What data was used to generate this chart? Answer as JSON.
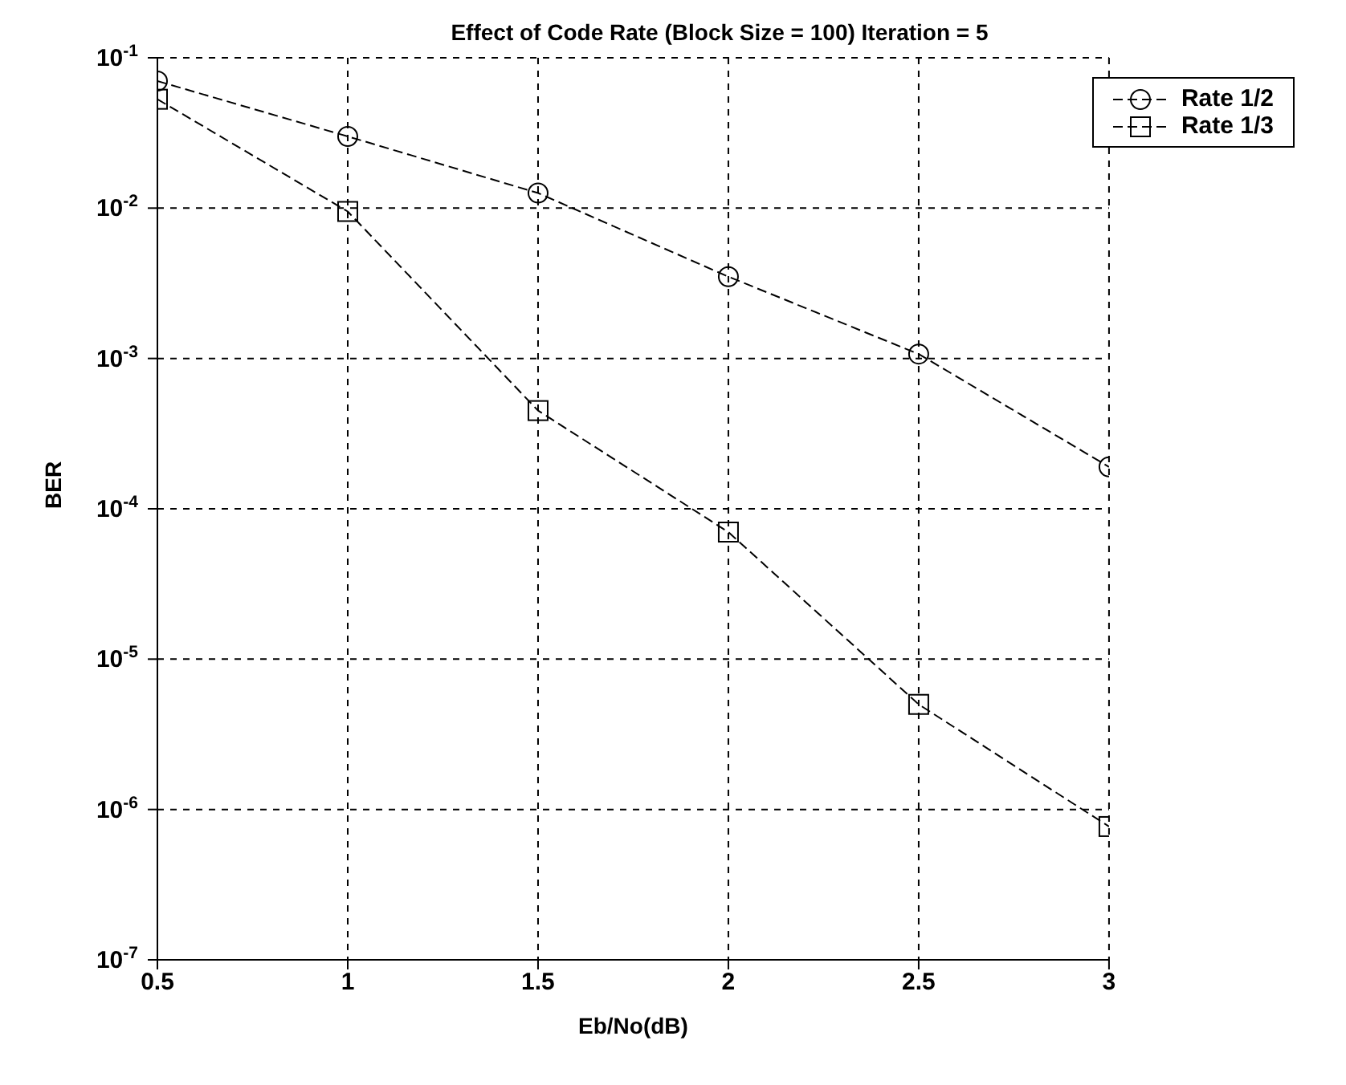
{
  "chart_data": {
    "type": "line",
    "title": "Effect of Code Rate (Block Size = 100) Iteration = 5",
    "xlabel": "Eb/No(dB)",
    "ylabel": "BER",
    "x": [
      0.5,
      1,
      1.5,
      2,
      2.5,
      3
    ],
    "series": [
      {
        "name": "Rate 1/2",
        "color": "#000000",
        "marker": "circle",
        "values": [
          0.07,
          0.03,
          0.0126,
          0.0035,
          0.00107,
          0.00019
        ]
      },
      {
        "name": "Rate 1/3",
        "color": "#000000",
        "marker": "square",
        "values": [
          0.053,
          0.0095,
          0.00045,
          7e-05,
          5e-06,
          7.7e-07
        ]
      }
    ],
    "log": "y",
    "line_style": "dashed",
    "grid": true,
    "legend": "top right",
    "xlim": [
      0.5,
      3
    ],
    "xticks": [
      0.5,
      1,
      1.5,
      2,
      2.5,
      3
    ],
    "ylim": [
      1e-07,
      0.1
    ],
    "yticks": [
      {
        "value": 1e-07,
        "label": "10$^{-7}$"
      },
      {
        "value": 1e-06,
        "label": "10$^{-6}$"
      },
      {
        "value": 1e-05,
        "label": "10$^{-5}$"
      },
      {
        "value": 0.0001,
        "label": "10$^{-4}$"
      },
      {
        "value": 0.001,
        "label": "10$^{-3}$"
      },
      {
        "value": 0.01,
        "label": "10$^{-2}$"
      },
      {
        "value": 0.1,
        "label": "10$^{-1}$"
      }
    ]
  }
}
